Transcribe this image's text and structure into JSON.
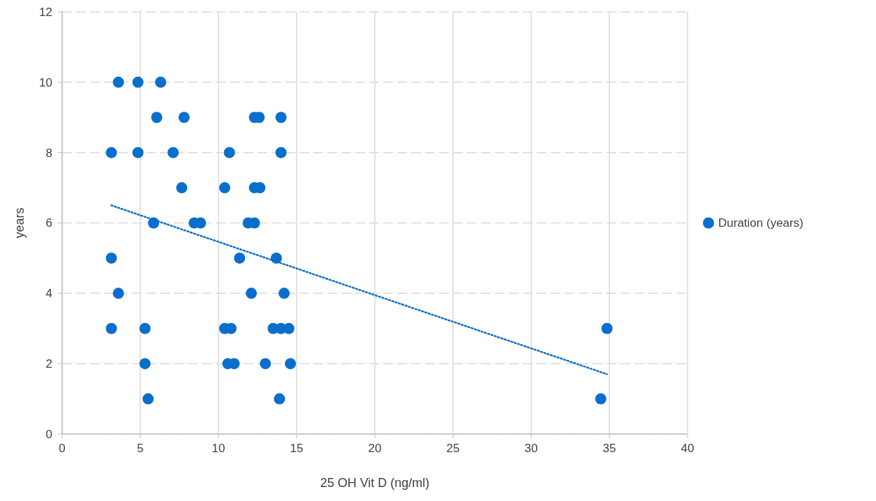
{
  "chart_data": {
    "type": "scatter",
    "xlabel": "25 OH Vit D (ng/ml)",
    "ylabel": "years",
    "xlim": [
      0,
      40
    ],
    "xticks": [
      0,
      5,
      10,
      15,
      20,
      25,
      30,
      35,
      40
    ],
    "ylim": [
      0,
      12
    ],
    "yticks": [
      0,
      2,
      4,
      6,
      8,
      10,
      12
    ],
    "grid": true,
    "legend": "right",
    "marker": "circle",
    "series": [
      {
        "name": "Duration (years)",
        "color": "#0a6fcc",
        "x": [
          3.6,
          4.85,
          6.3,
          6.05,
          7.8,
          12.3,
          12.6,
          14.0,
          3.15,
          4.85,
          7.1,
          10.7,
          14.0,
          7.65,
          10.4,
          12.3,
          12.65,
          5.85,
          8.45,
          8.85,
          11.9,
          12.3,
          3.15,
          11.35,
          13.7,
          3.6,
          12.1,
          14.2,
          3.15,
          5.3,
          10.4,
          10.8,
          13.5,
          14.0,
          14.5,
          5.3,
          10.6,
          11.0,
          13.0,
          14.6,
          5.5,
          13.9,
          34.85,
          34.45
        ],
        "values": [
          10,
          10,
          10,
          9,
          9,
          9,
          9,
          9,
          8,
          8,
          8,
          8,
          8,
          7,
          7,
          7,
          7,
          6,
          6,
          6,
          6,
          6,
          5,
          5,
          5,
          4,
          4,
          4,
          3,
          3,
          3,
          3,
          3,
          3,
          3,
          2,
          2,
          2,
          2,
          2,
          1,
          1,
          3,
          1
        ]
      },
      {
        "type": "line",
        "line_style": "dotted",
        "marker": "none",
        "color": "#0a6fcc",
        "x": [
          3.15,
          34.85
        ],
        "values": [
          6.5,
          1.7
        ]
      }
    ]
  }
}
